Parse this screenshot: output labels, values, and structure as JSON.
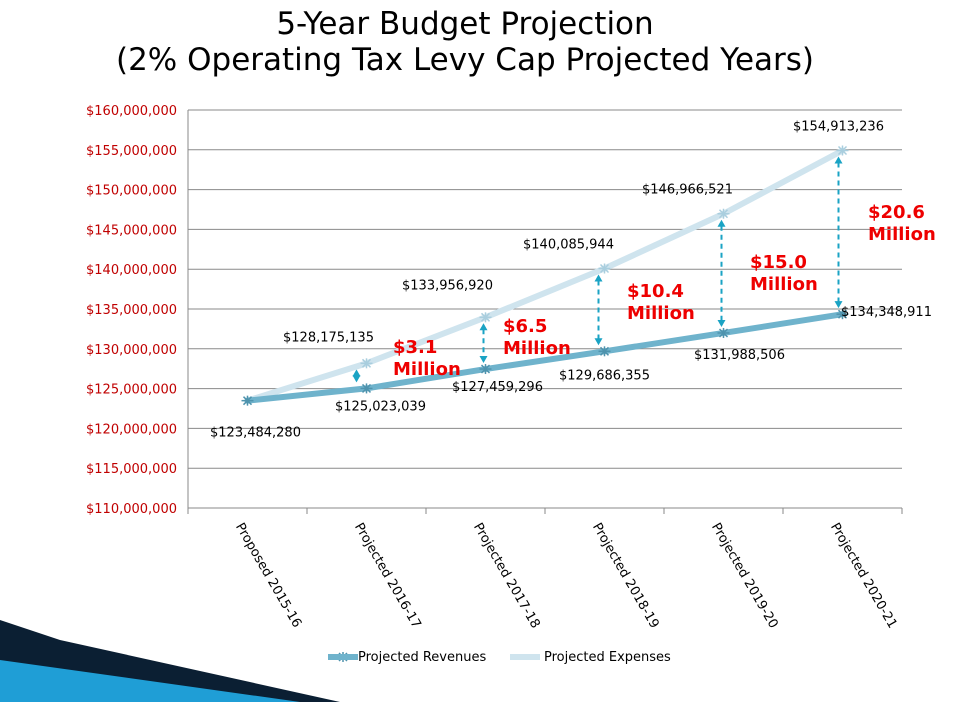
{
  "title": "5-Year Budget Projection",
  "subtitle": "(2% Operating Tax Levy Cap Projected Years)",
  "colors": {
    "revenues": "#6fb3cc",
    "expenses": "#cfe4ee",
    "axis_labels": "#c00000",
    "gap_labels": "#ee0000",
    "arrows": "#1aa3c4",
    "decor_dark": "#0b1f33",
    "decor_blue": "#1f9ed6"
  },
  "chart_data": {
    "type": "line",
    "categories": [
      "Proposed 2015-16",
      "Projected 2016-17",
      "Projected 2017-18",
      "Projected 2018-19",
      "Projected 2019-20",
      "Projected 2020-21"
    ],
    "series": [
      {
        "name": "Projected Revenues",
        "values": [
          123484280,
          125023039,
          127459296,
          129686355,
          131988506,
          134348911
        ],
        "labels": [
          "$123,484,280",
          "$125,023,039",
          "$127,459,296",
          "$129,686,355",
          "$131,988,506",
          "$134,348,911"
        ]
      },
      {
        "name": "Projected Expenses",
        "values": [
          123484280,
          128175135,
          133956920,
          140085944,
          146966521,
          154913236
        ],
        "labels": [
          "",
          "$128,175,135",
          "$133,956,920",
          "$140,085,944",
          "$146,966,521",
          "$154,913,236"
        ]
      }
    ],
    "ylim": [
      110000000,
      160000000
    ],
    "yticks": [
      110000000,
      115000000,
      120000000,
      125000000,
      130000000,
      135000000,
      140000000,
      145000000,
      150000000,
      155000000,
      160000000
    ],
    "ytick_labels": [
      "$110,000,000",
      "$115,000,000",
      "$120,000,000",
      "$125,000,000",
      "$130,000,000",
      "$135,000,000",
      "$140,000,000",
      "$145,000,000",
      "$150,000,000",
      "$155,000,000",
      "$160,000,000"
    ],
    "grid": true,
    "legend": "bottom",
    "gaps": [
      {
        "category": "Projected 2016-17",
        "line1": "$3.1",
        "line2": "Million"
      },
      {
        "category": "Projected 2017-18",
        "line1": "$6.5",
        "line2": "Million"
      },
      {
        "category": "Projected 2018-19",
        "line1": "$10.4",
        "line2": "Million"
      },
      {
        "category": "Projected 2019-20",
        "line1": "$15.0",
        "line2": "Million"
      },
      {
        "category": "Projected 2020-21",
        "line1": "$20.6",
        "line2": "Million"
      }
    ]
  }
}
